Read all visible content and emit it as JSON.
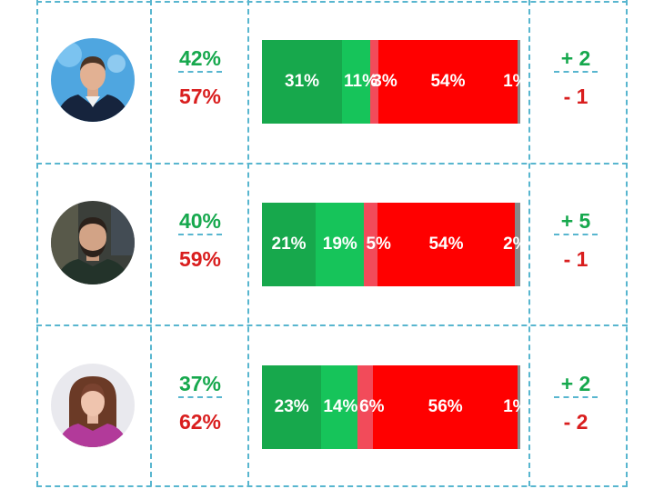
{
  "chart_data": {
    "type": "bar",
    "orientation": "horizontal-stacked",
    "segment_colors": [
      "#17a84c",
      "#16c45a",
      "#f24b5a",
      "#ff0000",
      "#888888"
    ],
    "rows": [
      {
        "approve_pct": "42%",
        "disapprove_pct": "57%",
        "segments": [
          31,
          11,
          3,
          54,
          1
        ],
        "segment_labels": [
          "31%",
          "11%",
          "3%",
          "54%",
          "1%"
        ],
        "change_plus": "+ 2",
        "change_minus": "- 1"
      },
      {
        "approve_pct": "40%",
        "disapprove_pct": "59%",
        "segments": [
          21,
          19,
          5,
          54,
          2
        ],
        "segment_labels": [
          "21%",
          "19%",
          "5%",
          "54%",
          "2%"
        ],
        "change_plus": "+ 5",
        "change_minus": "- 1"
      },
      {
        "approve_pct": "37%",
        "disapprove_pct": "62%",
        "segments": [
          23,
          14,
          6,
          56,
          1
        ],
        "segment_labels": [
          "23%",
          "14%",
          "6%",
          "56%",
          "1%"
        ],
        "change_plus": "+ 2",
        "change_minus": "- 2"
      }
    ]
  }
}
